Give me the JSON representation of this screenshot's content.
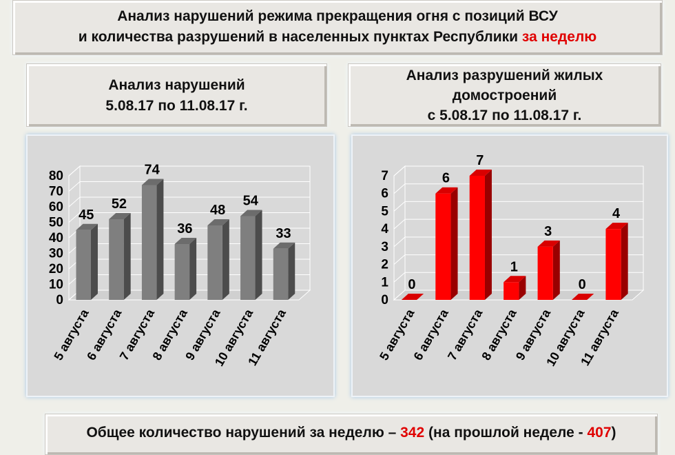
{
  "header": {
    "line1": "Анализ нарушений режима прекращения огня с позиций ВСУ",
    "line2": "и количества разрушений в населенных пунктах Республики",
    "line2_highlight": "за неделю"
  },
  "chart_data": [
    {
      "type": "bar3d",
      "title": "Анализ нарушений",
      "subtitle": "5.08.17 по 11.08.17 г.",
      "categories": [
        "5 августа",
        "6 августа",
        "7 августа",
        "8 августа",
        "9 августа",
        "10 августа",
        "11 августа"
      ],
      "values": [
        45,
        52,
        74,
        36,
        48,
        54,
        33
      ],
      "color": "#7f7f7f",
      "ylim": [
        0,
        80
      ],
      "yticks": [
        0,
        10,
        20,
        30,
        40,
        50,
        60,
        70,
        80
      ],
      "grid": true
    },
    {
      "type": "bar3d",
      "title": "Анализ разрушений жилых домостроений",
      "subtitle": "с 5.08.17 по 11.08.17 г.",
      "categories": [
        "5 августа",
        "6 августа",
        "7 августа",
        "8 августа",
        "9 августа",
        "10 августа",
        "11 августа"
      ],
      "values": [
        0,
        6,
        7,
        1,
        3,
        0,
        4
      ],
      "color": "#ff0000",
      "ylim": [
        0,
        7
      ],
      "yticks": [
        0,
        1,
        2,
        3,
        4,
        5,
        6,
        7
      ],
      "grid": true
    }
  ],
  "footer": {
    "text1": "Общее количество нарушений за неделю –",
    "value1": 342,
    "text2": "(на прошлой неделе -",
    "value2": 407,
    "text3": ")"
  }
}
